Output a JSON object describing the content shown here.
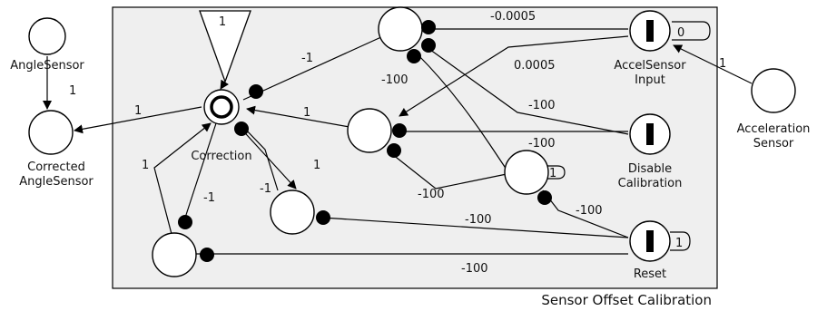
{
  "title": "Sensor Offset Calibration",
  "nodes": {
    "angle_sensor": "AngleSensor",
    "corrected": [
      "Corrected",
      "AngleSensor"
    ],
    "correction": "Correction",
    "accel_input": [
      "AccelSensor",
      "Input"
    ],
    "accel_input_value": "0",
    "acceleration_sensor": [
      "Acceleration",
      "Sensor"
    ],
    "disable_calibration": [
      "Disable",
      "Calibration"
    ],
    "reset": "Reset",
    "reset_value": "1",
    "self_loop_value": "1",
    "triangle_value": "1"
  },
  "weights": {
    "angle_to_corrected": "1",
    "correction_to_corrected": "1",
    "top_to_correction": "-1",
    "mid_to_correction": "1",
    "correction_to_lower": "1",
    "correction_to_left_bottom": "-1",
    "correction_self_lower": "-1",
    "bottom_to_correction": "1",
    "accel_to_top": "-0.0005",
    "accel_to_mid": "0.0005",
    "accel_sensor_to_input": "1",
    "top_to_mid": "-100",
    "top_to_disable": "-100",
    "mid_to_disable": "-100",
    "loop_to_mid": "-100",
    "loop_to_reset": "-100",
    "lower_to_reset": "-100",
    "bottom_to_reset": "-100"
  }
}
